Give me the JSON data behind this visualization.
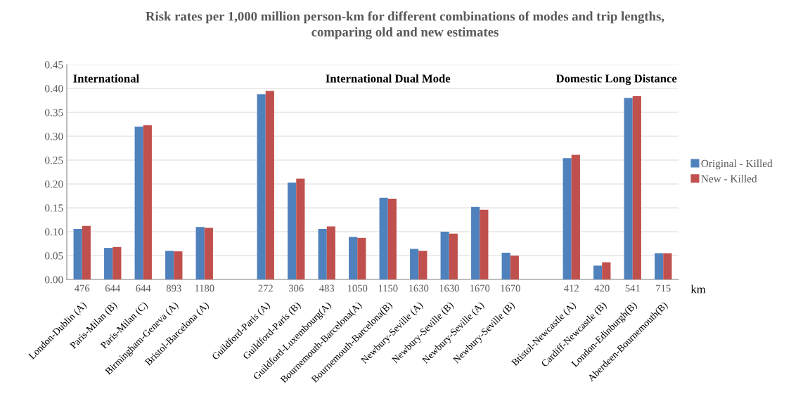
{
  "chart_data": {
    "type": "bar",
    "title": "Risk rates per 1,000 million person-km for different combinations of modes and trip lengths,\ncomparing old and new estimates",
    "categories": [
      "London-Dublin (A)",
      "Paris-Milan (B)",
      "Paris-Milan (C)",
      "Birmingham-Geneva (A)",
      "Bristol-Barcelona (A)",
      null,
      "Guildford-Paris (A)",
      "Guildford-Paris (B)",
      "Guildford-Luxembourg(A)",
      "Bournemouth-Barcelona(A)",
      "Bournemouth-Barcelona(B)",
      "Newbury-Seville (A)",
      "Newbury-Seville (B)",
      "Newbury-Seville (A)",
      "Newbury-Seville (B)",
      null,
      "Btistol-Newcastle (A)",
      "Cardiff-Newcastle (B)",
      "London-Edinburgh(B)",
      "Aberdeen-Bournemouth(B)"
    ],
    "series": [
      {
        "name": "Original - Killed",
        "color": "#4f81bd",
        "values": [
          0.106,
          0.066,
          0.32,
          0.06,
          0.11,
          null,
          0.388,
          0.203,
          0.106,
          0.089,
          0.171,
          0.064,
          0.1,
          0.152,
          0.056,
          null,
          0.254,
          0.029,
          0.38,
          0.055
        ]
      },
      {
        "name": "New - Killed",
        "color": "#c0504d",
        "values": [
          0.112,
          0.068,
          0.323,
          0.059,
          0.108,
          null,
          0.395,
          0.211,
          0.111,
          0.087,
          0.169,
          0.06,
          0.096,
          0.146,
          0.05,
          null,
          0.261,
          0.036,
          0.384,
          0.055
        ]
      }
    ],
    "ylim": [
      0,
      0.45
    ],
    "yticks": [
      {
        "value": 0,
        "label": "0.00"
      },
      {
        "value": 0.05,
        "label": "0.05"
      },
      {
        "value": 0.1,
        "label": "0.10"
      },
      {
        "value": 0.15,
        "label": "0.15"
      },
      {
        "value": 0.2,
        "label": "0.20"
      },
      {
        "value": 0.25,
        "label": "0.25"
      },
      {
        "value": 0.3,
        "label": "0.30"
      },
      {
        "value": 0.35,
        "label": "0.35"
      },
      {
        "value": 0.4,
        "label": "0.40"
      },
      {
        "value": 0.45,
        "label": "0.45"
      }
    ],
    "grid": "y",
    "legend": "right",
    "annotations": [
      "International",
      "International Dual Mode",
      "Domestic Long Distance",
      "476",
      "644",
      "644",
      "893",
      "1180",
      "272",
      "306",
      "483",
      "1050",
      "1150",
      "1630",
      "1630",
      "1670",
      "1670",
      "412",
      "420",
      "541",
      "715",
      "km"
    ]
  }
}
